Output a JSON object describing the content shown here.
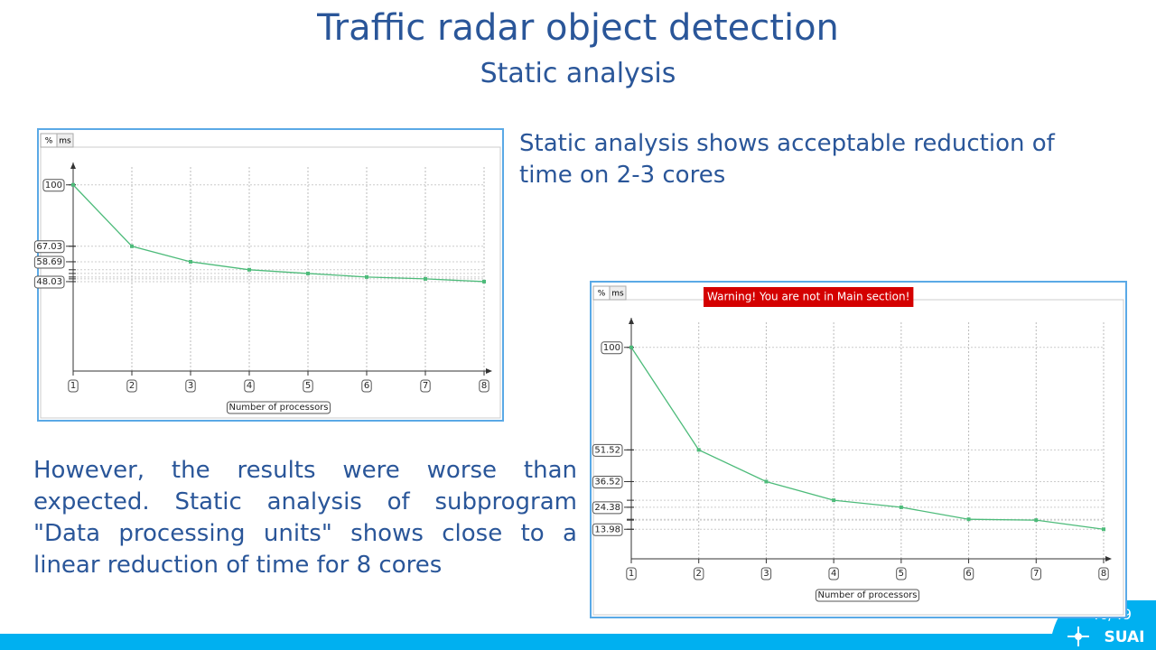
{
  "title": "Traffic radar object detection",
  "subtitle": "Static analysis",
  "paragraphs": [
    "Static analysis shows acceptable reduction of time on 2-3 cores",
    "However, the results were worse than expected. Static analysis of subprogram \"Data processing units\" shows close to a linear reduction of time for 8 cores"
  ],
  "page_number": "46/49",
  "logo": "SUAI",
  "chart_data": [
    {
      "type": "line",
      "tabs": [
        "%",
        "ms"
      ],
      "x_label": "Number of processors",
      "categories": [
        "1",
        "2",
        "3",
        "4",
        "5",
        "6",
        "7",
        "8"
      ],
      "values": [
        100,
        67.03,
        58.69,
        54.4,
        52.4,
        50.5,
        49.5,
        48.03
      ],
      "color": "#4dbb7a",
      "ylim": [
        0,
        112
      ],
      "yticks": [
        100,
        67.03,
        58.69,
        48.03
      ],
      "grid": true
    },
    {
      "type": "line",
      "tabs": [
        "%",
        "ms"
      ],
      "x_label": "Number of processors",
      "warning": "Warning! You are not in Main section!",
      "categories": [
        "1",
        "2",
        "3",
        "4",
        "5",
        "6",
        "7",
        "8"
      ],
      "values": [
        100,
        51.52,
        36.52,
        27.7,
        24.38,
        18.7,
        18.3,
        13.98
      ],
      "color": "#4dbb7a",
      "ylim": [
        0,
        114
      ],
      "yticks": [
        100,
        51.52,
        36.52,
        24.38,
        13.98
      ],
      "grid": true
    }
  ]
}
